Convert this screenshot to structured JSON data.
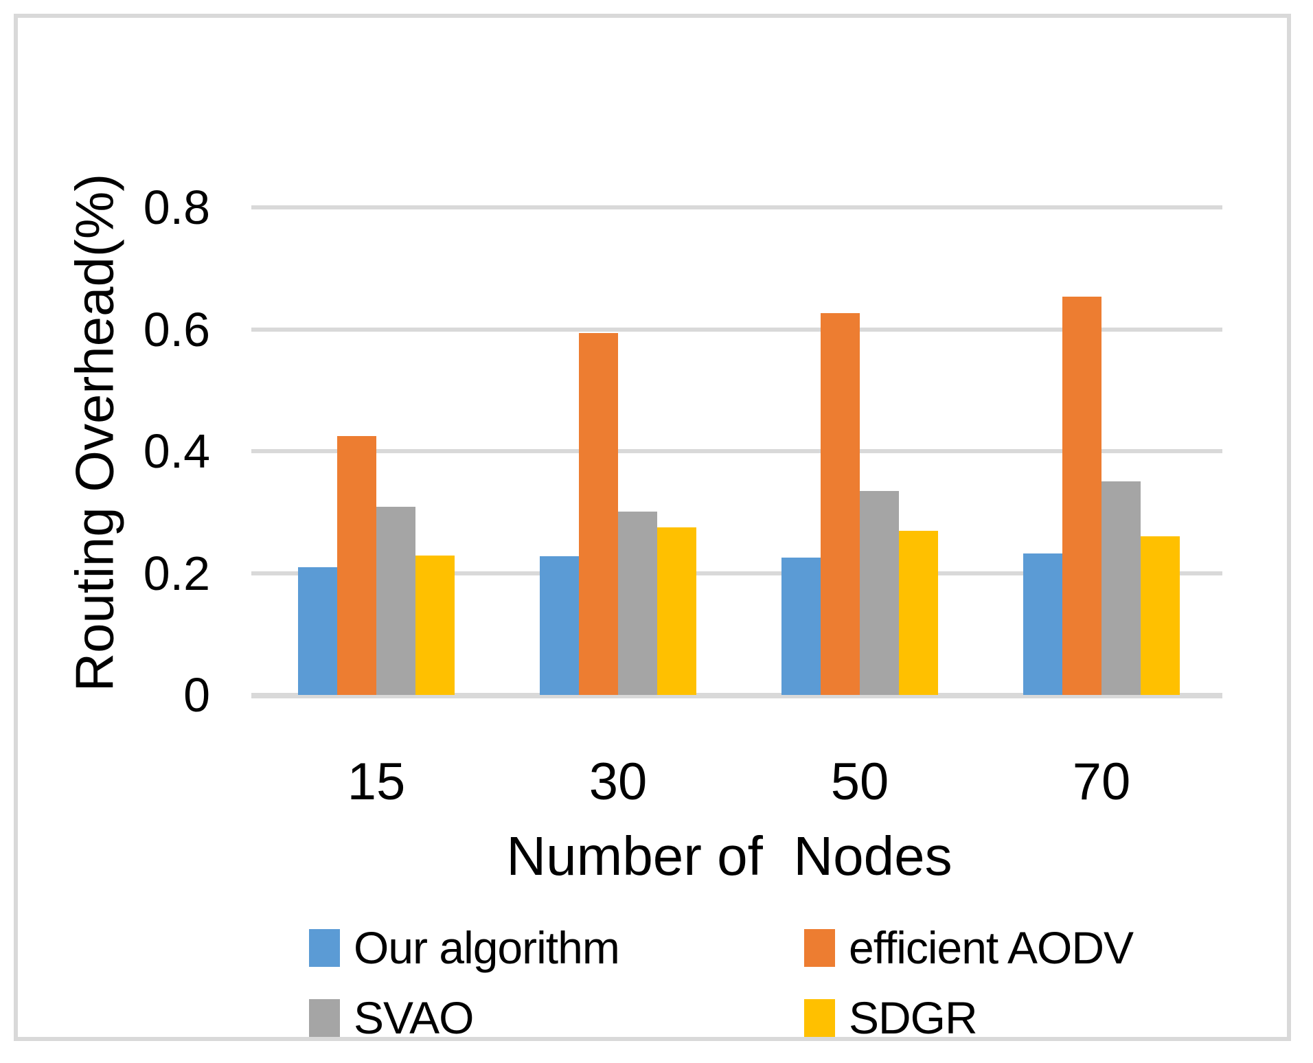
{
  "figure": {
    "background_color": "#FFFFFF",
    "border_color": "#D9D9D9",
    "gridline_color": "#D9D9D9",
    "text_color": "#000000"
  },
  "chart_data": {
    "type": "bar",
    "title": "",
    "xlabel": "Number of  Nodes",
    "ylabel": "Routing Overhead(%)",
    "categories": [
      "15",
      "30",
      "50",
      "70"
    ],
    "series": [
      {
        "name": "Our algorithm",
        "color": "#5B9BD5",
        "values": [
          0.21,
          0.228,
          0.225,
          0.232
        ]
      },
      {
        "name": "efficient AODV",
        "color": "#ED7D31",
        "values": [
          0.425,
          0.594,
          0.627,
          0.653
        ]
      },
      {
        "name": "SVAO",
        "color": "#A5A5A5",
        "values": [
          0.309,
          0.301,
          0.335,
          0.35
        ]
      },
      {
        "name": "SDGR",
        "color": "#FFC000",
        "values": [
          0.229,
          0.275,
          0.269,
          0.26
        ]
      }
    ],
    "y_ticks": [
      0,
      0.2,
      0.4,
      0.6,
      0.8
    ],
    "y_tick_labels": [
      "0",
      "0.2",
      "0.4",
      "0.6",
      "0.8"
    ],
    "ylim": [
      0,
      0.8
    ],
    "grid": true,
    "legend_position": "bottom",
    "legend_columns": 2
  }
}
